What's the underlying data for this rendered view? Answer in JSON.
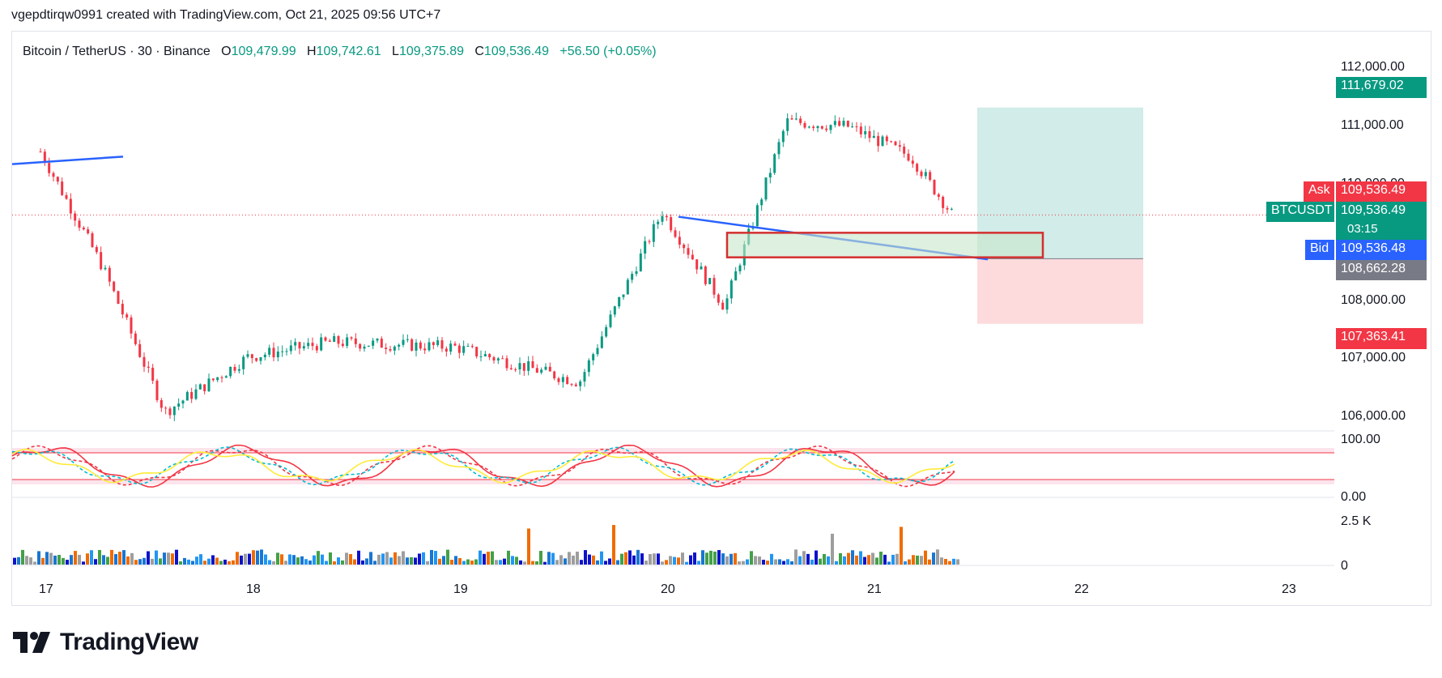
{
  "header": {
    "credit": "vgepdtirqw0991 created with TradingView.com, Oct 21, 2025 09:56 UTC+7"
  },
  "symbol": {
    "name": "Bitcoin / TetherUS · 30 · Binance",
    "o_label": "O",
    "o": "109,479.99",
    "h_label": "H",
    "h": "109,742.61",
    "l_label": "L",
    "l": "109,375.89",
    "c_label": "C",
    "c": "109,536.49",
    "change": "+56.50 (+0.05%)"
  },
  "colors": {
    "up": "#089981",
    "down": "#f23645",
    "trendline": "#2962ff",
    "target_zone": "#b2dfdb",
    "stop_zone": "#fccbcd",
    "box": "#d32f2f",
    "ask": "#f23645",
    "bid": "#2962ff",
    "entry": "#787b86"
  },
  "price_axis": {
    "ticks": [
      "112,000.00",
      "111,000.00",
      "110,000.00",
      "108,000.00",
      "107,000.00",
      "106,000.00"
    ]
  },
  "tags": {
    "target": "111,679.02",
    "ask_label": "Ask",
    "ask": "109,536.49",
    "symbol_label": "BTCUSDT",
    "last": "109,536.49",
    "countdown": "03:15",
    "bid_label": "Bid",
    "bid": "109,536.48",
    "entry": "108,662.28",
    "stop": "107,363.41"
  },
  "oscillator_axis": {
    "top": "100.00",
    "bottom": "0.00"
  },
  "volume_axis": {
    "top": "2.5 K",
    "bottom": "0"
  },
  "time_axis": {
    "labels": [
      "17",
      "18",
      "19",
      "20",
      "21",
      "22",
      "23"
    ]
  },
  "chart_data": {
    "type": "candlestick",
    "symbol": "BTCUSDT",
    "interval": "30",
    "ylim": [
      105500,
      112500
    ],
    "key_points": [
      {
        "x": "17",
        "y": 110800
      },
      {
        "x": "17.3",
        "y": 108500
      },
      {
        "x": "17.6",
        "y": 105600
      },
      {
        "x": "18",
        "y": 106700
      },
      {
        "x": "18.4",
        "y": 107000
      },
      {
        "x": "19",
        "y": 106900
      },
      {
        "x": "19.6",
        "y": 106200
      },
      {
        "x": "20",
        "y": 109600
      },
      {
        "x": "20.3",
        "y": 107700
      },
      {
        "x": "20.6",
        "y": 111400
      },
      {
        "x": "20.9",
        "y": 111300
      },
      {
        "x": "21.2",
        "y": 110700
      },
      {
        "x": "21.4",
        "y": 109536
      }
    ],
    "position": {
      "target": 111679.02,
      "entry": 108662.28,
      "stop": 107363.41
    },
    "oscillator": {
      "upper": 80,
      "lower": 20,
      "ylim": [
        0,
        100
      ]
    },
    "volume_ylim": [
      0,
      2500
    ]
  }
}
